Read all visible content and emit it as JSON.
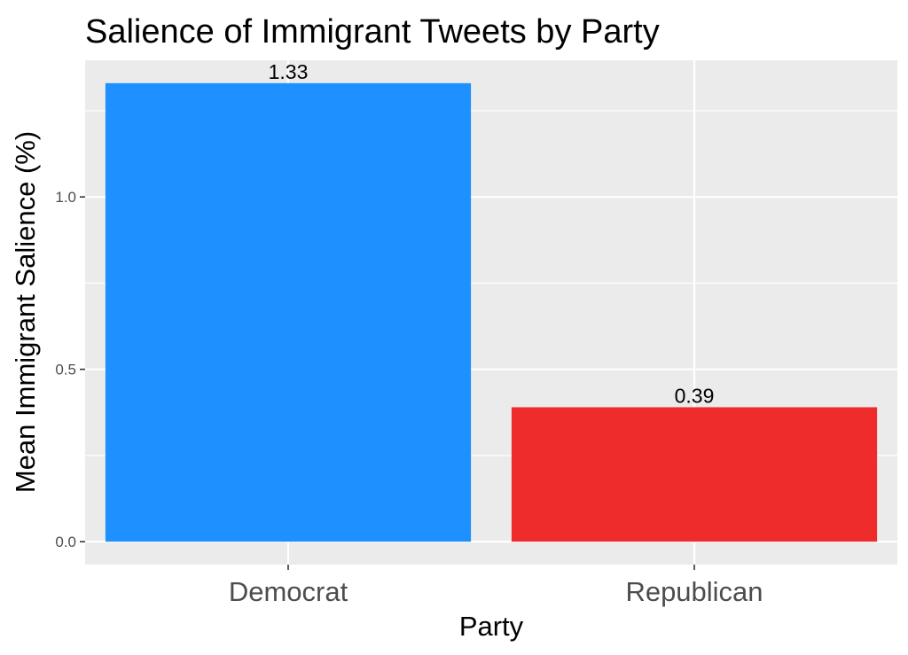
{
  "chart_data": {
    "type": "bar",
    "title": "Salience of Immigrant Tweets by Party",
    "xlabel": "Party",
    "ylabel": "Mean Immigrant Salience (%)",
    "categories": [
      "Democrat",
      "Republican"
    ],
    "values": [
      1.33,
      0.39
    ],
    "data_labels": [
      "1.33",
      "0.39"
    ],
    "colors": [
      "#1e90ff",
      "#ee2c2c"
    ],
    "yticks": [
      0.0,
      0.5,
      1.0
    ],
    "ytick_labels": [
      "0.0",
      "0.5",
      "1.0"
    ],
    "ylim": [
      -0.0665,
      1.3965
    ],
    "grid": true,
    "panel_background": "#ebebeb",
    "grid_color": "#ffffff"
  }
}
